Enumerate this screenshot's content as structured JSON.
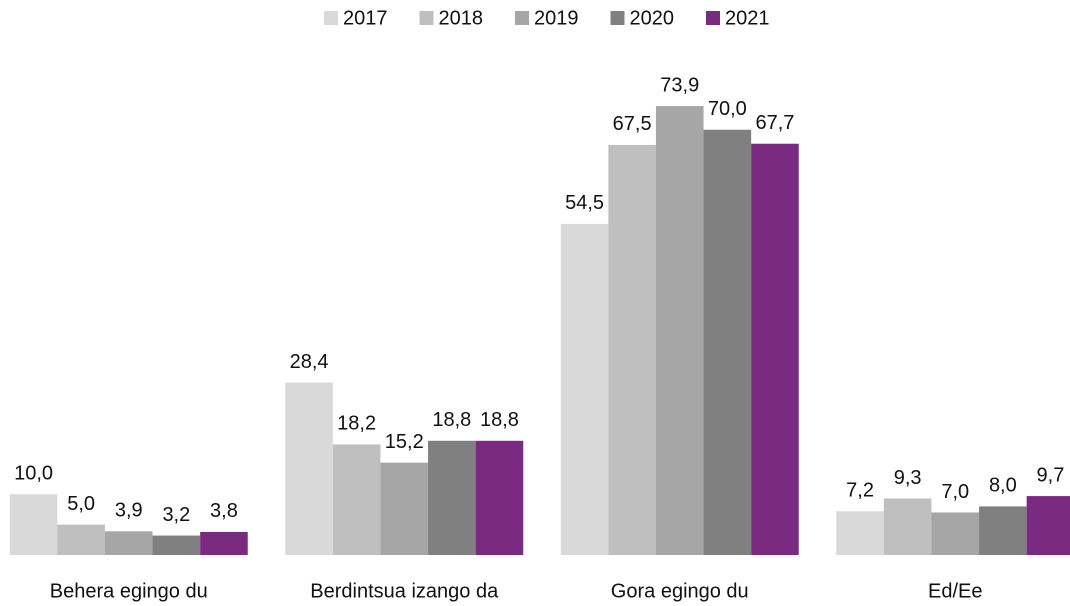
{
  "chart_data": {
    "type": "bar",
    "categories": [
      "Behera egingo du",
      "Berdintsua izango da",
      "Gora egingo du",
      "Ed/Ee"
    ],
    "series": [
      {
        "name": "2017",
        "color": "#d9d9d9",
        "values": [
          10.0,
          28.4,
          54.5,
          7.2
        ],
        "value_labels": [
          "10,0",
          "28,4",
          "54,5",
          "7,2"
        ]
      },
      {
        "name": "2018",
        "color": "#bfbfbf",
        "values": [
          5.0,
          18.2,
          67.5,
          9.3
        ],
        "value_labels": [
          "5,0",
          "18,2",
          "67,5",
          "9,3"
        ]
      },
      {
        "name": "2019",
        "color": "#a6a6a6",
        "values": [
          3.9,
          15.2,
          73.9,
          7.0
        ],
        "value_labels": [
          "3,9",
          "15,2",
          "73,9",
          "7,0"
        ]
      },
      {
        "name": "2020",
        "color": "#808080",
        "values": [
          3.2,
          18.8,
          70.0,
          8.0
        ],
        "value_labels": [
          "3,2",
          "18,8",
          "70,0",
          "8,0"
        ]
      },
      {
        "name": "2021",
        "color": "#7b2a82",
        "values": [
          3.8,
          18.8,
          67.7,
          9.7
        ],
        "value_labels": [
          "3,8",
          "18,8",
          "67,7",
          "9,7"
        ]
      }
    ],
    "ylim": [
      0,
      80
    ],
    "legend": "top"
  }
}
